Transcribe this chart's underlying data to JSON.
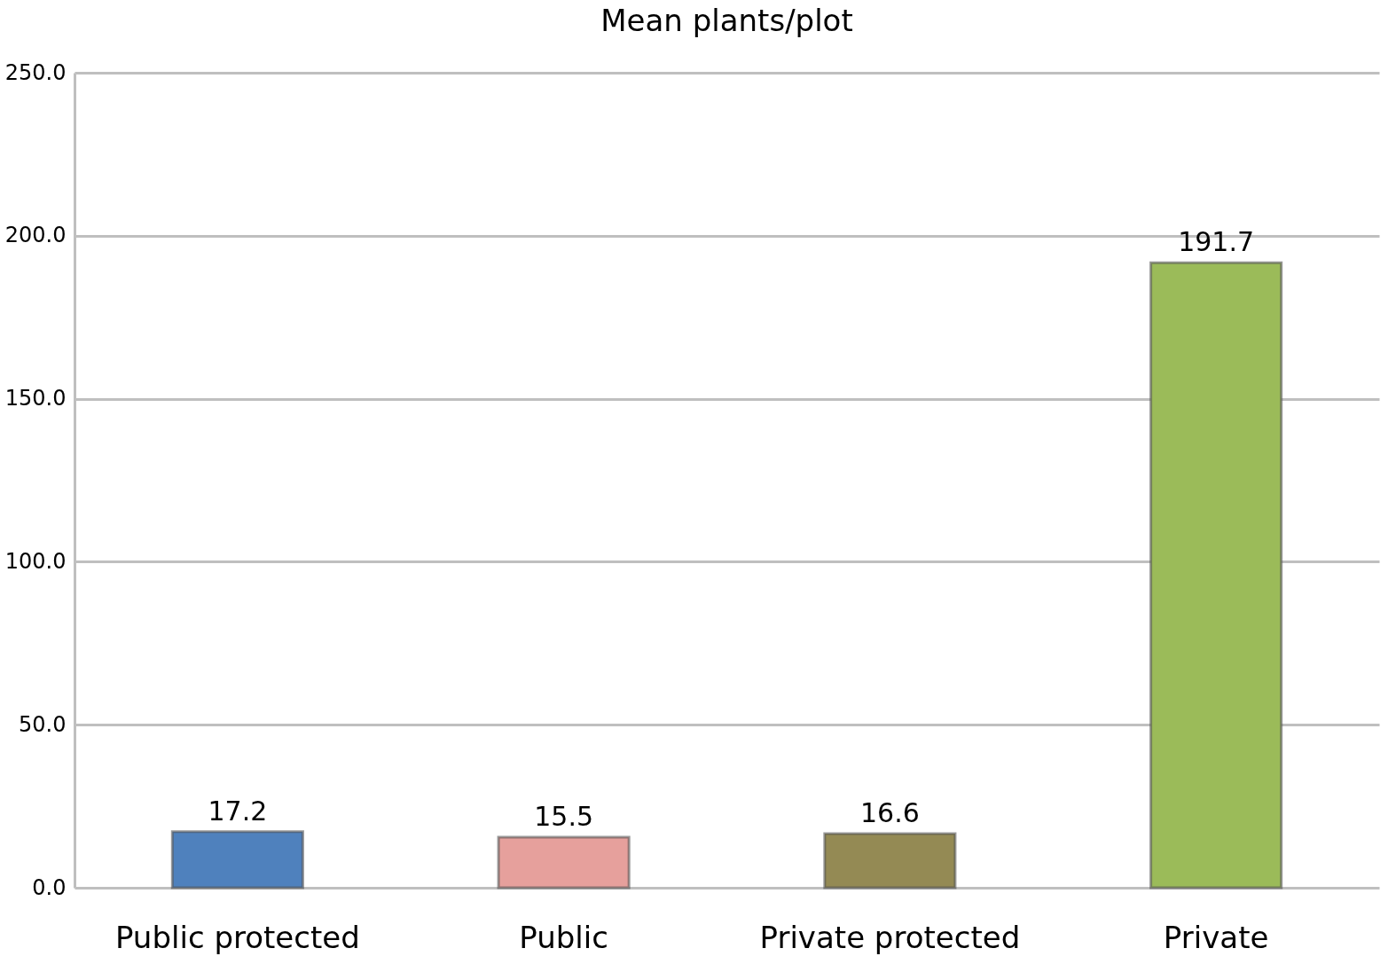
{
  "chart_data": {
    "type": "bar",
    "title": "Mean plants/plot",
    "categories": [
      "Public protected",
      "Public",
      "Private protected",
      "Private"
    ],
    "values": [
      17.2,
      15.5,
      16.6,
      191.7
    ],
    "colors": [
      "#4f81bd",
      "#e6a09c",
      "#948a54",
      "#9bbb59"
    ],
    "ylim": [
      0,
      250
    ],
    "yticks": [
      {
        "value": 0,
        "label": "0.0"
      },
      {
        "value": 50,
        "label": "50.0"
      },
      {
        "value": 100,
        "label": "100.0"
      },
      {
        "value": 150,
        "label": "150.0"
      },
      {
        "value": 200,
        "label": "200.0"
      },
      {
        "value": 250,
        "label": "250.0"
      }
    ],
    "grid": "y",
    "data_labels": true
  }
}
